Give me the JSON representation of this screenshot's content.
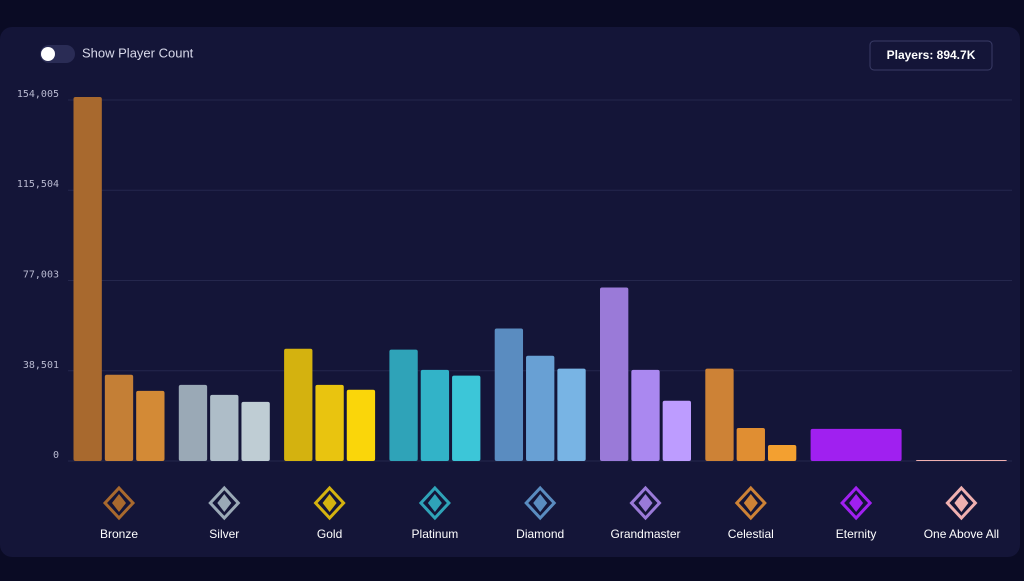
{
  "toggle_label": "Show Player Count",
  "players_badge": "Players: 894.7K",
  "chart_data": {
    "type": "bar",
    "ylim": [
      0,
      154005
    ],
    "yticks": [
      0,
      {
        "value": 38501,
        "label": "38,501"
      },
      {
        "value": 77003,
        "label": "77,003"
      },
      {
        "value": 115504,
        "label": "115,504"
      },
      {
        "value": 154005,
        "label": "154,005"
      }
    ],
    "grid": true,
    "groups": [
      {
        "label": "Bronze",
        "values": [
          155300,
          36800,
          29900
        ],
        "colors": [
          "#a8692e",
          "#c47f36",
          "#d38a36"
        ]
      },
      {
        "label": "Silver",
        "values": [
          32500,
          28200,
          25200
        ],
        "colors": [
          "#9aa9b6",
          "#aebdc8",
          "#bfcdd4"
        ]
      },
      {
        "label": "Gold",
        "values": [
          47900,
          32500,
          30400
        ],
        "colors": [
          "#d4b20f",
          "#e9c40f",
          "#fad60a"
        ]
      },
      {
        "label": "Platinum",
        "values": [
          47500,
          38900,
          36400
        ],
        "colors": [
          "#2fa3b8",
          "#32b3c8",
          "#3cc6d8"
        ]
      },
      {
        "label": "Diamond",
        "values": [
          56500,
          44900,
          39400
        ],
        "colors": [
          "#5a8cc0",
          "#68a0d4",
          "#78b4e4"
        ]
      },
      {
        "label": "Grandmaster",
        "values": [
          74000,
          38900,
          25700
        ],
        "colors": [
          "#9a7ad8",
          "#aa88f0",
          "#bd9cff"
        ]
      },
      {
        "label": "Celestial",
        "values": [
          39400,
          14100,
          6800
        ],
        "colors": [
          "#cd8236",
          "#e08e32",
          "#f3a030"
        ]
      },
      {
        "label": "Eternity",
        "values": [
          13700
        ],
        "colors": [
          "#a020f0"
        ]
      },
      {
        "label": "One Above All",
        "values": [
          400
        ],
        "colors": [
          "#f0b0b0"
        ]
      }
    ]
  }
}
